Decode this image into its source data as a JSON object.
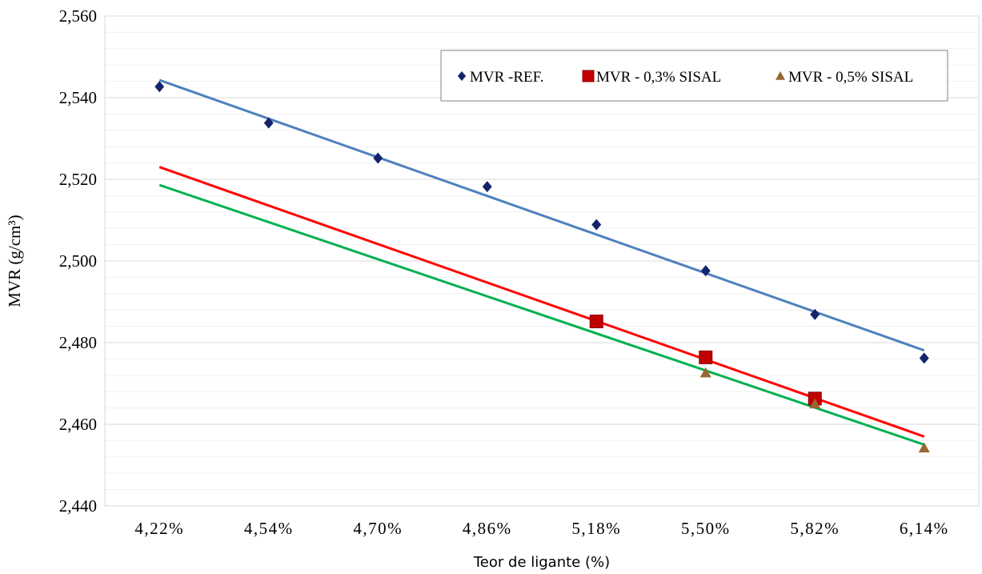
{
  "chart_data": {
    "type": "scatter",
    "xlabel": "Teor de ligante (%)",
    "ylabel": "MVR (g/cm³)",
    "categories": [
      "4,22%",
      "4,54%",
      "4,70%",
      "4,86%",
      "5,18%",
      "5,50%",
      "5,82%",
      "6,14%"
    ],
    "ylim": [
      2.44,
      2.56
    ],
    "yticks": [
      2.44,
      2.46,
      2.48,
      2.5,
      2.52,
      2.54,
      2.56
    ],
    "ytick_labels": [
      "2,440",
      "2,460",
      "2,480",
      "2,500",
      "2,520",
      "2,540",
      "2,560"
    ],
    "grid": true,
    "legend_position": "top-right",
    "series": [
      {
        "name": "MVR -REF.",
        "marker": "diamond",
        "color": "#14246b",
        "trend_color": "#4f81bd",
        "values": [
          2.5427,
          2.5338,
          2.5252,
          2.5182,
          2.5089,
          2.4976,
          2.4869,
          2.4762
        ],
        "trend": [
          2.5443,
          2.4781
        ]
      },
      {
        "name": "MVR - 0,3% SISAL",
        "marker": "square",
        "color": "#c00000",
        "trend_color": "#ff0000",
        "values": [
          null,
          null,
          null,
          null,
          2.4852,
          2.4764,
          2.4663,
          null
        ],
        "trend": [
          2.523,
          2.457
        ]
      },
      {
        "name": "MVR - 0,5% SISAL",
        "marker": "triangle",
        "color": "#996633",
        "trend_color": "#00b050",
        "values": [
          null,
          null,
          null,
          null,
          null,
          2.4726,
          2.465,
          2.4542
        ],
        "trend": [
          2.5186,
          2.455
        ]
      }
    ]
  }
}
